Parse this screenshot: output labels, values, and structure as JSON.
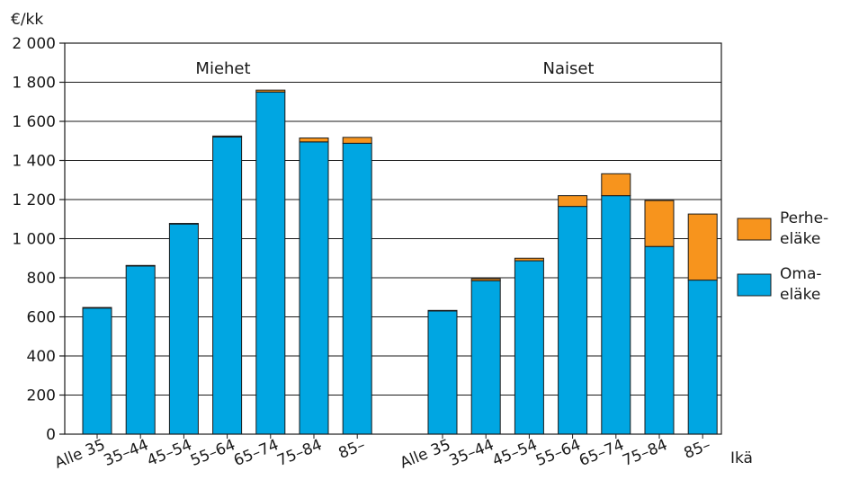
{
  "chart_data": {
    "type": "bar",
    "stacked": true,
    "ylabel": "€/kk",
    "xlabel": "Ikä",
    "ylim": [
      0,
      2000
    ],
    "yticks": [
      "0",
      "200",
      "400",
      "600",
      "800",
      "1 000",
      "1 200",
      "1 400",
      "1 600",
      "1 800",
      "2 000"
    ],
    "grid": true,
    "legend_position": "right",
    "groups": [
      {
        "name": "Miehet",
        "categories": [
          "Alle 35",
          "35–44",
          "45–54",
          "55–64",
          "65–74",
          "75–84",
          "85–"
        ],
        "series": [
          {
            "name": "Omaeläke",
            "values": [
              645,
              860,
              1075,
              1520,
              1750,
              1495,
              1488
            ]
          },
          {
            "name": "Perheeläke",
            "values": [
              3,
              3,
              3,
              5,
              10,
              20,
              30
            ]
          }
        ]
      },
      {
        "name": "Naiset",
        "categories": [
          "Alle 35",
          "35–44",
          "45–54",
          "55–64",
          "65–74",
          "75–84",
          "85–"
        ],
        "series": [
          {
            "name": "Omaeläke",
            "values": [
              630,
              785,
              887,
              1165,
              1220,
              960,
              788
            ]
          },
          {
            "name": "Perheeläke",
            "values": [
              3,
              10,
              13,
              55,
              112,
              235,
              338
            ]
          }
        ]
      }
    ],
    "legend": [
      {
        "lines": [
          "Perhe-",
          "eläke"
        ],
        "color": "#f7941d"
      },
      {
        "lines": [
          "Oma-",
          "eläke"
        ],
        "color": "#00a6e2"
      }
    ],
    "colors": {
      "omaelake": "#00a6e2",
      "perheelake": "#f7941d",
      "grid": "#1a1a1a",
      "outline": "#1a1a1a"
    }
  }
}
